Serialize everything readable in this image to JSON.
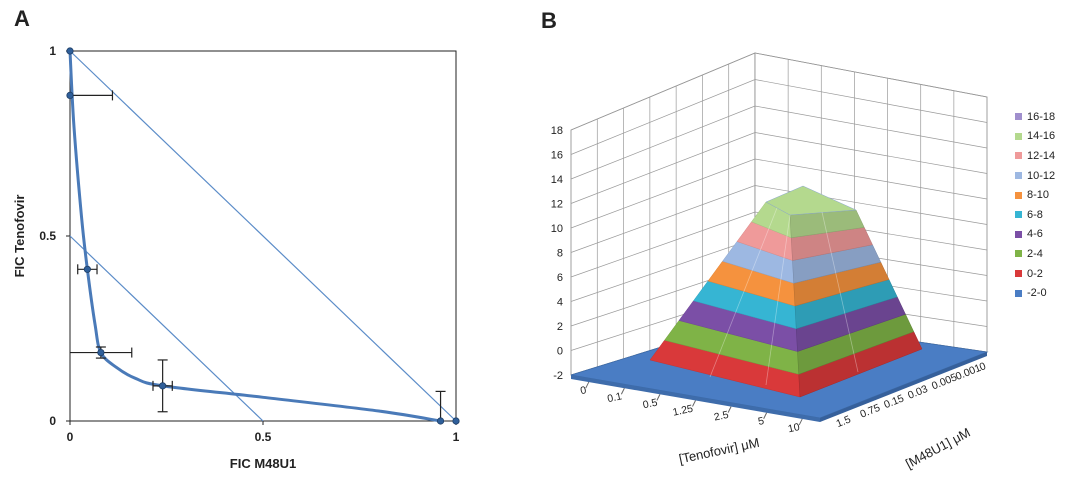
{
  "panels": {
    "a_label": "A",
    "b_label": "B"
  },
  "chart_data": [
    {
      "type": "scatter",
      "panel": "A",
      "title": "",
      "xlabel": "FIC M48U1",
      "ylabel": "FIC Tenofovir",
      "xlim": [
        0,
        1
      ],
      "ylim": [
        0,
        1
      ],
      "x_ticks": [
        0,
        0.5,
        1
      ],
      "y_ticks": [
        0,
        0.5,
        1
      ],
      "grid": false,
      "colors": {
        "curve": "#4a7ab8",
        "lines": "#5b8cc8",
        "errorbars": "#222222"
      },
      "reference_lines": [
        {
          "x": [
            0,
            1
          ],
          "y": [
            1,
            0
          ]
        },
        {
          "x": [
            0,
            0.5
          ],
          "y": [
            0.5,
            0
          ]
        }
      ],
      "points": [
        {
          "x": 0.0,
          "y": 1.0,
          "xerr": 0,
          "yerr": 0
        },
        {
          "x": 0.0,
          "y": 0.88,
          "xerr": 0.11,
          "yerr": 0
        },
        {
          "x": 0.045,
          "y": 0.41,
          "xerr": 0.025,
          "yerr": 0
        },
        {
          "x": 0.08,
          "y": 0.185,
          "xerr": 0.08,
          "yerr": 0.015
        },
        {
          "x": 0.24,
          "y": 0.095,
          "xerr": 0.025,
          "yerr": 0.07
        },
        {
          "x": 0.96,
          "y": 0.0,
          "xerr": 0,
          "yerr": 0.08
        },
        {
          "x": 1.0,
          "y": 0.0,
          "xerr": 0,
          "yerr": 0
        }
      ],
      "curve": {
        "x": [
          0,
          0.01,
          0.03,
          0.045,
          0.065,
          0.08,
          0.12,
          0.17,
          0.24,
          0.5,
          0.8,
          0.96
        ],
        "y": [
          1.0,
          0.8,
          0.55,
          0.41,
          0.26,
          0.185,
          0.145,
          0.115,
          0.095,
          0.064,
          0.027,
          0.0
        ]
      }
    },
    {
      "type": "surface3d",
      "panel": "B",
      "title": "",
      "xlabel": "[Tenofovir] μM",
      "ylabel": "[M48U1] μM",
      "zlim": [
        -2,
        18
      ],
      "z_ticks": [
        "-2",
        "0",
        "2",
        "4",
        "6",
        "8",
        "10",
        "12",
        "14",
        "16",
        "18"
      ],
      "x_ticks": [
        "0",
        "0.1",
        "0.5",
        "1.25",
        "2.5",
        "5",
        "10"
      ],
      "y_ticks": [
        "0",
        "0.001",
        "0.005",
        "0.03",
        "0.15",
        "0.75",
        "1.5"
      ],
      "peak_z": 16,
      "grid": true,
      "legend_position": "right",
      "legend": [
        {
          "label": "16-18",
          "color": "#a08fcd"
        },
        {
          "label": "14-16",
          "color": "#b4d98e"
        },
        {
          "label": "12-14",
          "color": "#ef9a9a"
        },
        {
          "label": "10-12",
          "color": "#9db8e2"
        },
        {
          "label": "8-10",
          "color": "#f5923e"
        },
        {
          "label": "6-8",
          "color": "#36b5d3"
        },
        {
          "label": "4-6",
          "color": "#7b4fa6"
        },
        {
          "label": "2-4",
          "color": "#7fb347"
        },
        {
          "label": "0-2",
          "color": "#d9393a"
        },
        {
          "label": "-2-0",
          "color": "#4a7dc4"
        }
      ]
    }
  ]
}
